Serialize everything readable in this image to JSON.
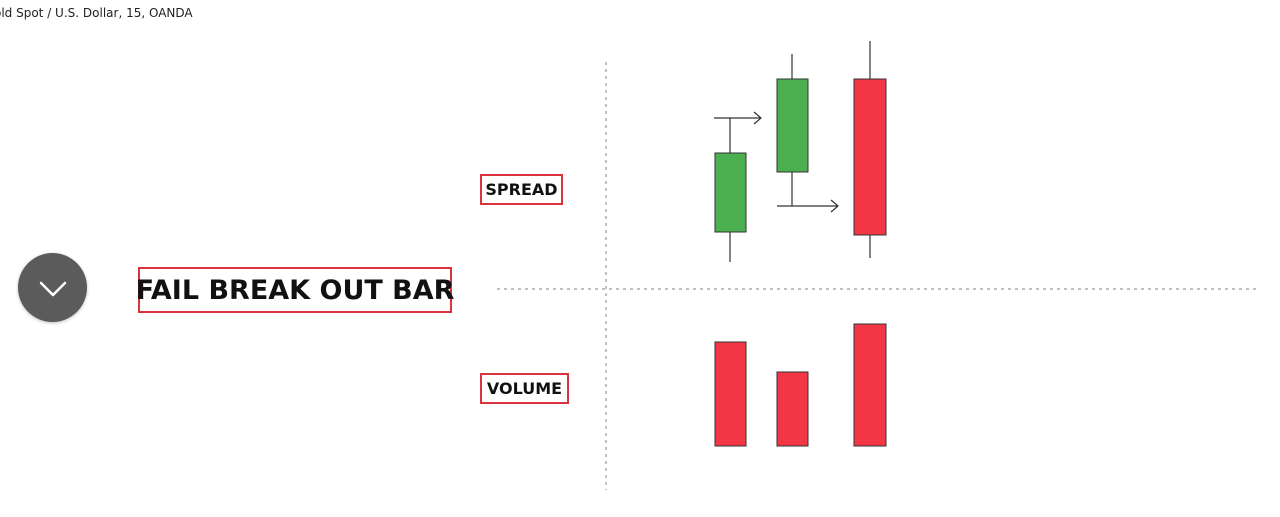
{
  "header": {
    "symbol_title": "old Spot / U.S. Dollar, 15, OANDA"
  },
  "diagram": {
    "title": "FAIL BREAK OUT BAR",
    "spread_label": "SPREAD",
    "volume_label": "VOLUME",
    "colors": {
      "bull": "#4caf50",
      "bear": "#f23645",
      "label_border": "#d9333f",
      "toggle_bg": "#5b5b5b"
    },
    "candles": [
      {
        "type": "bull"
      },
      {
        "type": "bull"
      },
      {
        "type": "bear"
      }
    ],
    "volume_bars": [
      {
        "level": "medium-high"
      },
      {
        "level": "low"
      },
      {
        "level": "high"
      }
    ]
  },
  "controls": {
    "toggle_icon": "chevron-down-icon"
  }
}
